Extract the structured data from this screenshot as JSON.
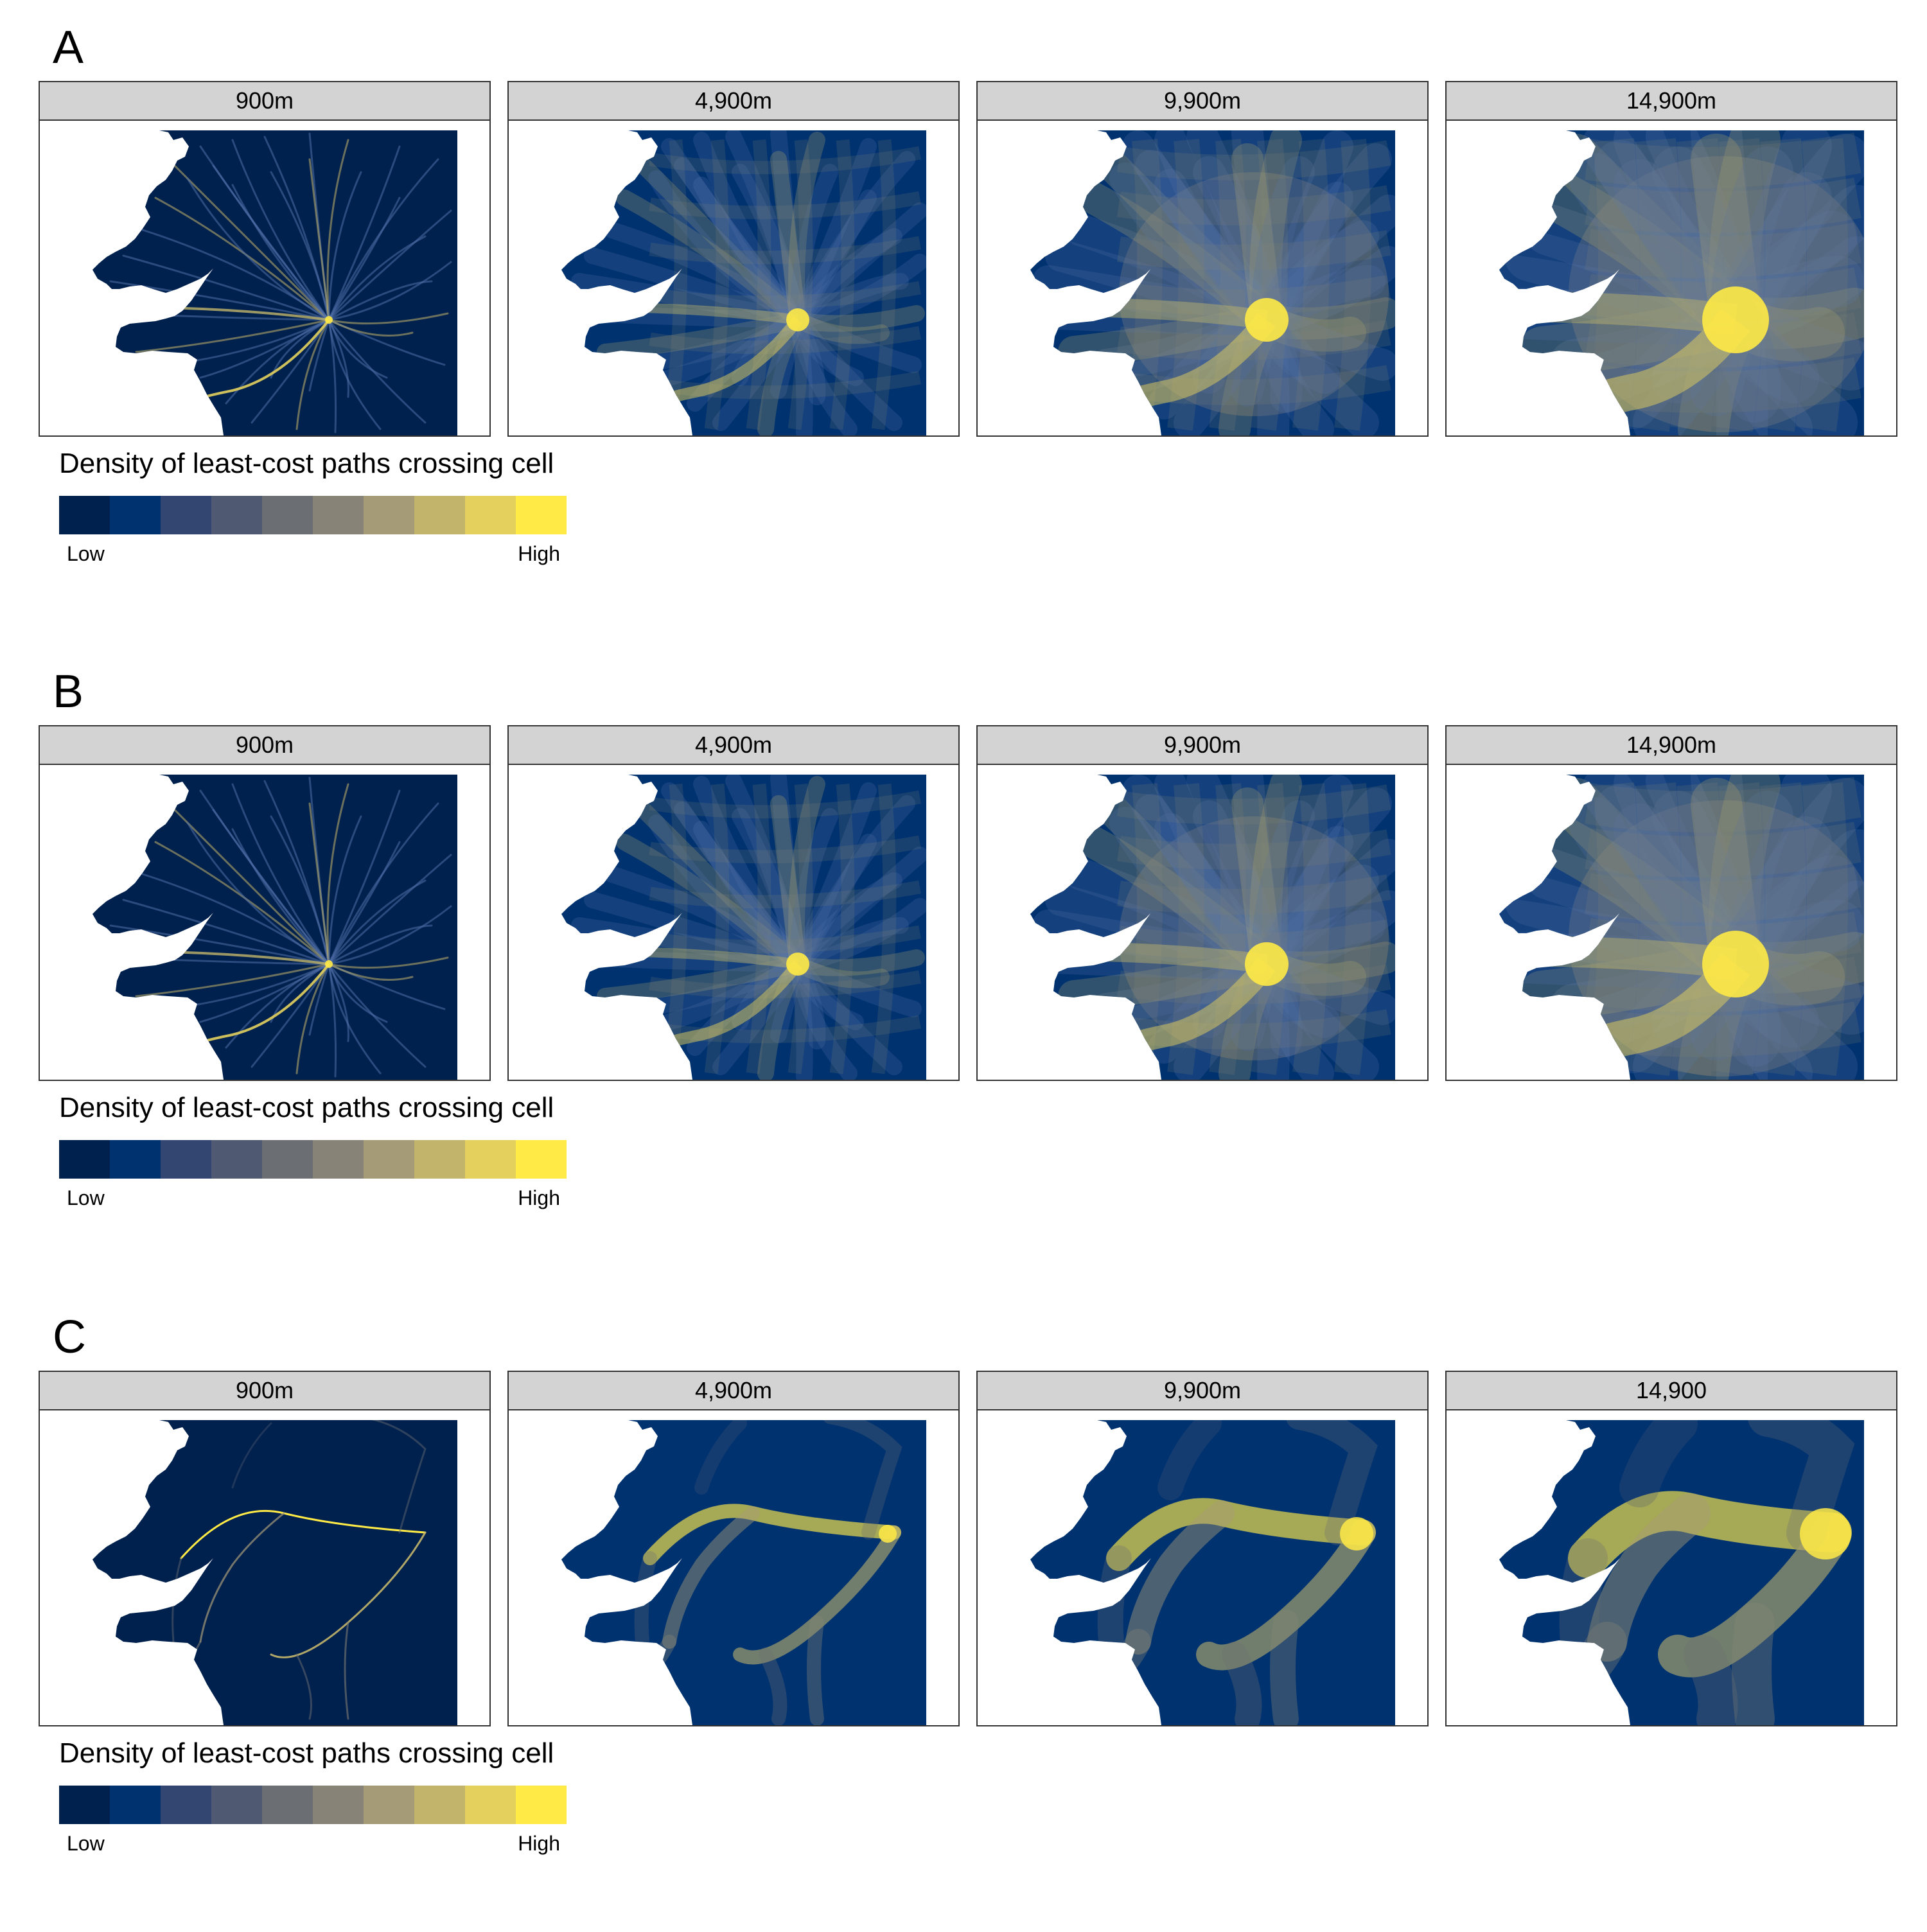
{
  "rows": [
    {
      "letter": "A",
      "panels": [
        "900m",
        "4,900m",
        "9,900m",
        "14,900m"
      ],
      "network": "radial",
      "subnet": "A"
    },
    {
      "letter": "B",
      "panels": [
        "900m",
        "4,900m",
        "9,900m",
        "14,900m"
      ],
      "network": "radial",
      "subnet": "B"
    },
    {
      "letter": "C",
      "panels": [
        "900m",
        "4,900m",
        "9,900m",
        "14,900"
      ],
      "network": "corridor",
      "subnet": "C"
    }
  ],
  "legend": {
    "title": "Density of least-cost paths crossing cell",
    "low_label": "Low",
    "high_label": "High",
    "colors": [
      "#00204d",
      "#00326f",
      "#334672",
      "#4f5a72",
      "#6b6e73",
      "#878377",
      "#a69b77",
      "#c2b56b",
      "#e3d05d",
      "#ffea46"
    ]
  },
  "colors": {
    "background": "#00204d",
    "land_dark": "#00326f",
    "sea": "#ffffff",
    "high": "#ffea46"
  }
}
